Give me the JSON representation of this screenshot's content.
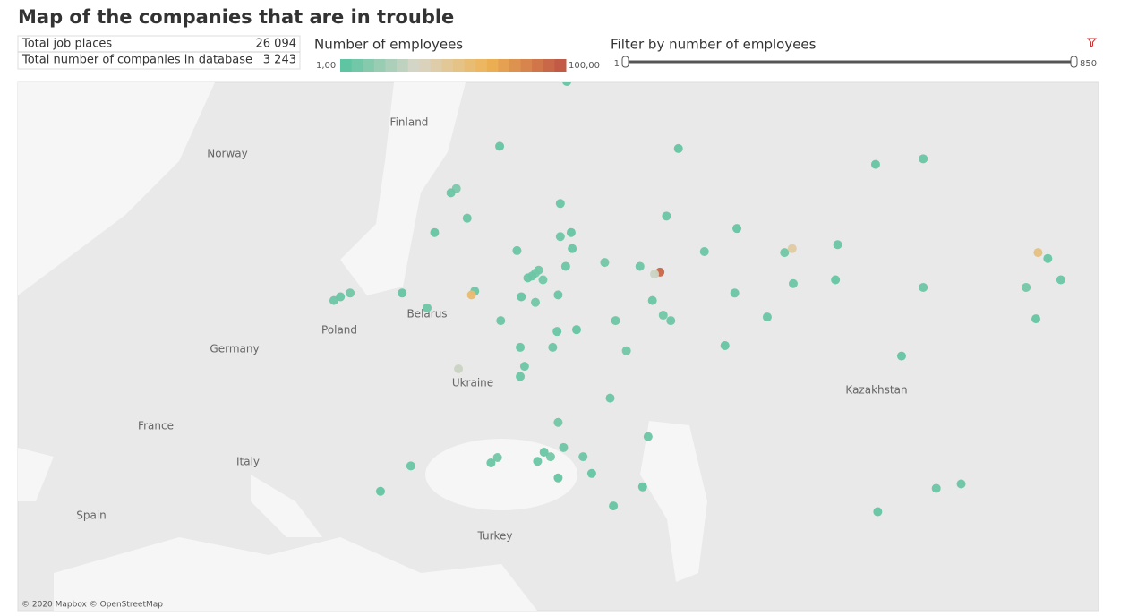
{
  "header": {
    "title": "Map of the companies that are in trouble"
  },
  "stats": {
    "rows": [
      [
        "Total job places",
        "26 094"
      ],
      [
        "Total number of companies in database",
        "3 243"
      ]
    ]
  },
  "legend": {
    "title": "Number of employees",
    "min": {
      "value": 1,
      "label": "1,00"
    },
    "max": {
      "value": 100,
      "label": "100,00"
    },
    "colors": [
      "#5ec4a1",
      "#d9d6c8",
      "#eeb354",
      "#c25a46"
    ]
  },
  "filter": {
    "title": "Filter by number of employees",
    "min": 1,
    "max": 850
  },
  "map": {
    "country_labels": [
      "Finland",
      "Norway",
      "Poland",
      "Belarus",
      "Germany",
      "Ukraine",
      "France",
      "Italy",
      "Spain",
      "Turkey",
      "Kazakhstan"
    ],
    "attribution": "© 2020 Mapbox © OpenStreetMap",
    "points": [
      {
        "lon": 37.6,
        "lat": 55.75,
        "employees": 8
      },
      {
        "lon": 37.3,
        "lat": 55.6,
        "employees": 5
      },
      {
        "lon": 37.9,
        "lat": 55.9,
        "employees": 6
      },
      {
        "lon": 36.9,
        "lat": 55.5,
        "employees": 4
      },
      {
        "lon": 38.3,
        "lat": 55.4,
        "employees": 7
      },
      {
        "lon": 30.3,
        "lat": 59.9,
        "employees": 9
      },
      {
        "lon": 29.8,
        "lat": 59.7,
        "employees": 4
      },
      {
        "lon": 49.1,
        "lat": 55.8,
        "employees": 95
      },
      {
        "lon": 48.6,
        "lat": 55.7,
        "employees": 30
      },
      {
        "lon": 44.0,
        "lat": 56.3,
        "employees": 6
      },
      {
        "lon": 50.1,
        "lat": 53.2,
        "employees": 5
      },
      {
        "lon": 44.5,
        "lat": 48.7,
        "employees": 4
      },
      {
        "lon": 39.7,
        "lat": 47.2,
        "employees": 6
      },
      {
        "lon": 39.0,
        "lat": 45.0,
        "employees": 7
      },
      {
        "lon": 39.7,
        "lat": 43.6,
        "employees": 3
      },
      {
        "lon": 37.8,
        "lat": 44.7,
        "employees": 4
      },
      {
        "lon": 39.2,
        "lat": 51.7,
        "employees": 5
      },
      {
        "lon": 60.6,
        "lat": 56.8,
        "employees": 6
      },
      {
        "lon": 61.4,
        "lat": 55.2,
        "employees": 5
      },
      {
        "lon": 56.0,
        "lat": 54.7,
        "employees": 4
      },
      {
        "lon": 56.2,
        "lat": 58.0,
        "employees": 3
      },
      {
        "lon": 73.4,
        "lat": 55.0,
        "employees": 5
      },
      {
        "lon": 82.9,
        "lat": 55.0,
        "employees": 7
      },
      {
        "lon": 84.9,
        "lat": 56.5,
        "employees": 4
      },
      {
        "lon": 83.8,
        "lat": 53.3,
        "employees": 3
      },
      {
        "lon": 86.1,
        "lat": 55.4,
        "employees": 5
      },
      {
        "lon": 84.0,
        "lat": 56.8,
        "employees": 55
      },
      {
        "lon": 65.5,
        "lat": 57.2,
        "employees": 4
      },
      {
        "lon": 61.3,
        "lat": 57.0,
        "employees": 45
      },
      {
        "lon": 20.5,
        "lat": 54.7,
        "employees": 6
      },
      {
        "lon": 27.6,
        "lat": 53.9,
        "employees": 5
      },
      {
        "lon": 76.9,
        "lat": 43.2,
        "employees": 4
      },
      {
        "lon": 71.4,
        "lat": 51.2,
        "employees": 3
      },
      {
        "lon": 69.2,
        "lat": 41.3,
        "employees": 3
      },
      {
        "lon": 74.6,
        "lat": 42.9,
        "employees": 4
      },
      {
        "lon": 40.5,
        "lat": 64.5,
        "employees": 3
      },
      {
        "lon": 39.9,
        "lat": 59.2,
        "employees": 4
      },
      {
        "lon": 39.9,
        "lat": 57.6,
        "employees": 5
      },
      {
        "lon": 35.9,
        "lat": 56.9,
        "employees": 4
      },
      {
        "lon": 37.6,
        "lat": 54.2,
        "employees": 6
      },
      {
        "lon": 39.7,
        "lat": 54.6,
        "employees": 4
      },
      {
        "lon": 36.3,
        "lat": 54.5,
        "employees": 3
      },
      {
        "lon": 34.4,
        "lat": 53.2,
        "employees": 5
      },
      {
        "lon": 36.2,
        "lat": 51.7,
        "employees": 4
      },
      {
        "lon": 36.6,
        "lat": 50.6,
        "employees": 5
      },
      {
        "lon": 39.6,
        "lat": 52.6,
        "employees": 4
      },
      {
        "lon": 41.4,
        "lat": 52.7,
        "employees": 3
      },
      {
        "lon": 45.0,
        "lat": 53.2,
        "employees": 5
      },
      {
        "lon": 46.0,
        "lat": 51.5,
        "employees": 6
      },
      {
        "lon": 55.1,
        "lat": 51.8,
        "employees": 3
      },
      {
        "lon": 48.0,
        "lat": 46.3,
        "employees": 4
      },
      {
        "lon": 47.5,
        "lat": 43.0,
        "employees": 3
      },
      {
        "lon": 42.0,
        "lat": 45.0,
        "employees": 5
      },
      {
        "lon": 34.1,
        "lat": 44.95,
        "employees": 6
      },
      {
        "lon": 33.5,
        "lat": 44.6,
        "employees": 4
      },
      {
        "lon": 30.5,
        "lat": 50.45,
        "employees": 30
      },
      {
        "lon": 36.2,
        "lat": 50.0,
        "employees": 4
      },
      {
        "lon": 53.2,
        "lat": 56.85,
        "employees": 5
      },
      {
        "lon": 49.7,
        "lat": 58.6,
        "employees": 4
      },
      {
        "lon": 50.8,
        "lat": 61.7,
        "employees": 3
      },
      {
        "lon": 47.25,
        "lat": 56.1,
        "employees": 5
      },
      {
        "lon": 48.4,
        "lat": 54.3,
        "employees": 4
      },
      {
        "lon": 49.4,
        "lat": 53.5,
        "employees": 6
      },
      {
        "lon": 28.3,
        "lat": 57.8,
        "employees": 3
      },
      {
        "lon": 31.3,
        "lat": 58.5,
        "employees": 4
      },
      {
        "lon": 32.0,
        "lat": 54.8,
        "employees": 5
      },
      {
        "lon": 41.0,
        "lat": 57.0,
        "employees": 4
      },
      {
        "lon": 40.9,
        "lat": 57.8,
        "employees": 3
      },
      {
        "lon": 40.4,
        "lat": 56.1,
        "employees": 5
      },
      {
        "lon": 34.3,
        "lat": 61.8,
        "employees": 3
      },
      {
        "lon": 73.4,
        "lat": 61.25,
        "employees": 4
      },
      {
        "lon": 69.0,
        "lat": 61.0,
        "employees": 3
      },
      {
        "lon": 59.0,
        "lat": 53.4,
        "employees": 4
      },
      {
        "lon": 65.3,
        "lat": 55.4,
        "employees": 3
      },
      {
        "lon": 23.3,
        "lat": 42.7,
        "employees": 3
      },
      {
        "lon": 26.1,
        "lat": 44.4,
        "employees": 4
      },
      {
        "lon": 25.3,
        "lat": 54.7,
        "employees": 3
      },
      {
        "lon": 31.7,
        "lat": 54.6,
        "employees": 60
      },
      {
        "lon": 19.0,
        "lat": 54.3,
        "employees": 5
      },
      {
        "lon": 19.6,
        "lat": 54.5,
        "employees": 4
      },
      {
        "lon": 40.2,
        "lat": 45.6,
        "employees": 5
      },
      {
        "lon": 38.4,
        "lat": 45.3,
        "employees": 4
      },
      {
        "lon": 42.8,
        "lat": 43.9,
        "employees": 3
      },
      {
        "lon": 44.8,
        "lat": 41.7,
        "employees": 3
      }
    ]
  }
}
